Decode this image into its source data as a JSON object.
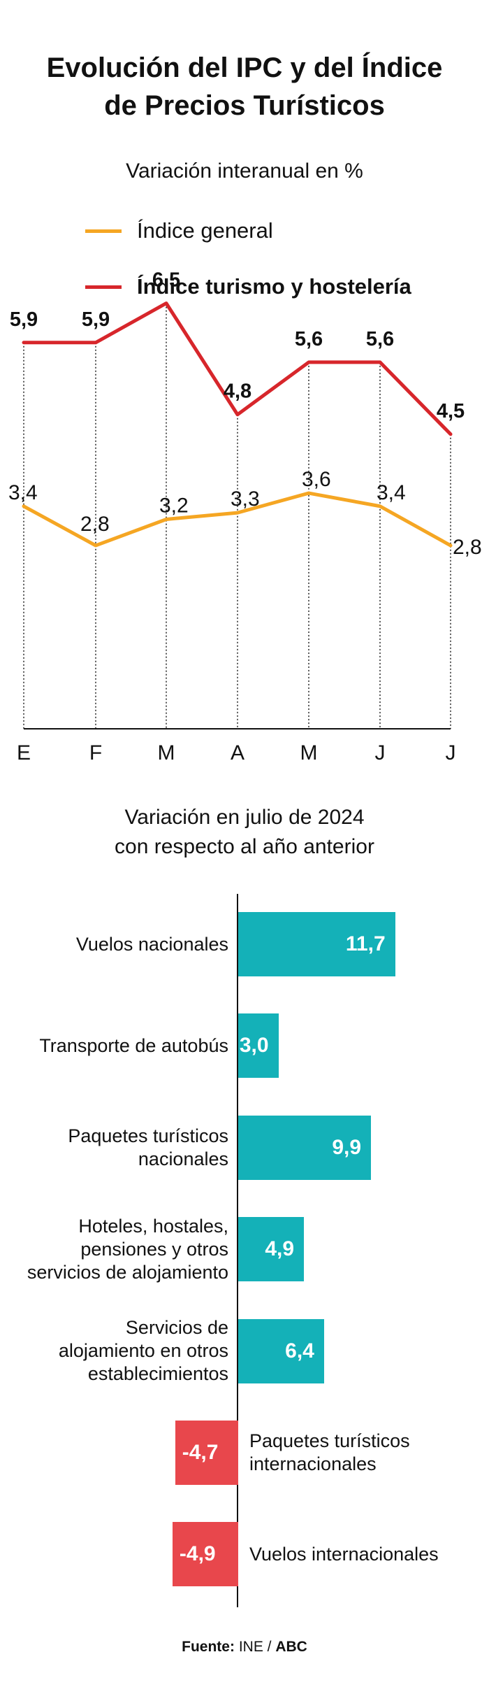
{
  "title_line1": "Evolución del IPC y del Índice",
  "title_line2": "de Precios Turísticos",
  "subtitle": "Variación interanual en %",
  "legend": [
    {
      "label": "Índice general",
      "color": "#f5a623"
    },
    {
      "label": "Índice turismo y hostelería",
      "color": "#d7262b"
    }
  ],
  "bar_subtitle_line1": "Variación en julio de 2024",
  "bar_subtitle_line2": "con respecto al año anterior",
  "source_label": "Fuente:",
  "source_text": "INE /",
  "source_brand": "ABC",
  "chart_data": [
    {
      "type": "line",
      "title": "Evolución del IPC y del Índice de Precios Turísticos",
      "subtitle": "Variación interanual en %",
      "categories": [
        "E",
        "F",
        "M",
        "A",
        "M",
        "J",
        "J"
      ],
      "ylim": [
        0,
        7
      ],
      "series": [
        {
          "name": "Índice general",
          "color": "#f5a623",
          "values": [
            3.4,
            2.8,
            3.2,
            3.3,
            3.6,
            3.4,
            2.8
          ],
          "labels": [
            "3,4",
            "2,8",
            "3,2",
            "3,3",
            "3,6",
            "3,4",
            "2,8"
          ]
        },
        {
          "name": "Índice turismo y hostelería",
          "color": "#d7262b",
          "values": [
            5.9,
            5.9,
            6.5,
            4.8,
            5.6,
            5.6,
            4.5
          ],
          "labels": [
            "5,9",
            "5,9",
            "6,5",
            "4,8",
            "5,6",
            "5,6",
            "4,5"
          ]
        }
      ]
    },
    {
      "type": "bar",
      "orientation": "horizontal",
      "title": "Variación en julio de 2024 con respecto al año anterior",
      "positive_color": "#14b1b8",
      "negative_color": "#e8474c",
      "categories": [
        [
          "Vuelos nacionales"
        ],
        [
          "Transporte de autobús"
        ],
        [
          "Paquetes turísticos",
          "nacionales"
        ],
        [
          "Hoteles, hostales,",
          "pensiones y otros",
          "servicios de alojamiento"
        ],
        [
          "Servicios de",
          "alojamiento en otros",
          "establecimientos"
        ],
        [
          "Paquetes turísticos",
          "internacionales"
        ],
        [
          "Vuelos internacionales"
        ]
      ],
      "values": [
        11.7,
        3.0,
        9.9,
        4.9,
        6.4,
        -4.7,
        -4.9
      ],
      "labels": [
        "11,7",
        "3,0",
        "9,9",
        "4,9",
        "6,4",
        "-4,7",
        "-4,9"
      ]
    }
  ]
}
